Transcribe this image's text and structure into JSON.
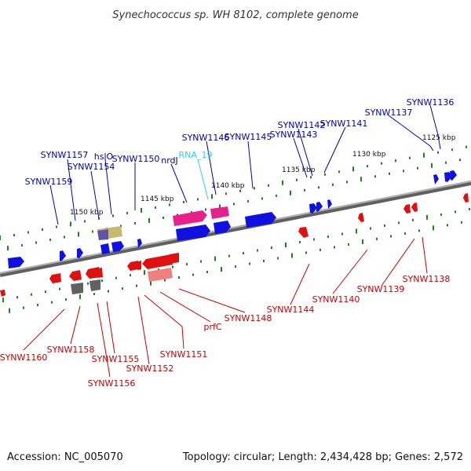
{
  "title": "Synechococcus sp. WH 8102, complete genome",
  "footer": {
    "accession": "Accession: NC_005070",
    "summary": "Topology: circular; Length: 2,434,428 bp; Genes: 2,572"
  },
  "scale": [
    "1125 kbp",
    "1130 kbp",
    "1135 kbp",
    "1140 kbp",
    "1145 kbp",
    "1150 kbp"
  ],
  "colors": {
    "forward": "#1010e0",
    "reverse": "#e01010",
    "rna": "#e8208c",
    "rna_light": "#f070b0",
    "label_forward": "#0000b4",
    "label_reverse": "#c80000",
    "label_rna": "#33ccee",
    "tick": "#208020",
    "backbone": "#808080",
    "grey_gene": "#606060",
    "olive_gene": "#c8b870",
    "purple_gene": "#6050b0",
    "pink_gene": "#f08080"
  },
  "labels_forward": [
    "SYNW1136",
    "SYNW1137",
    "SYNW1141",
    "SYNW1142",
    "SYNW1143",
    "SYNW1145",
    "SYNW1146",
    "nrdJ",
    "SYNW1150",
    "hslO",
    "SYNW1157",
    "SYNW1154",
    "SYNW1159"
  ],
  "label_rna": "RNA_19",
  "labels_reverse": [
    "SYNW1138",
    "SYNW1139",
    "SYNW1140",
    "SYNW1144",
    "SYNW1148",
    "prfC",
    "SYNW1151",
    "SYNW1152",
    "SYNW1155",
    "SYNW1156",
    "SYNW1158",
    "SYNW1160"
  ]
}
